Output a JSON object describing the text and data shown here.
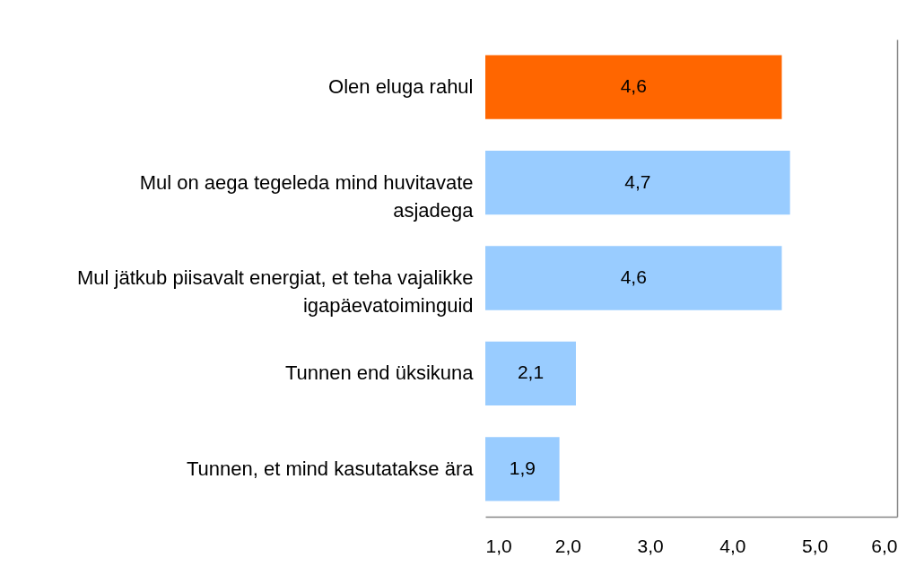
{
  "chart_data": {
    "type": "bar",
    "orientation": "horizontal",
    "categories": [
      "Olen eluga rahul",
      "Mul on aega tegeleda mind huvitavate asjadega",
      "Mul jätkub piisavalt energiat, et teha vajalikke igapäevatoiminguid",
      "Tunnen end üksikuna",
      "Tunnen, et mind kasutatakse ära"
    ],
    "values": [
      4.6,
      4.7,
      4.6,
      2.1,
      1.9
    ],
    "colors": [
      "#ff6600",
      "#99ccff",
      "#99ccff",
      "#99ccff",
      "#99ccff"
    ],
    "value_labels": [
      "4,6",
      "4,7",
      "4,6",
      "2,1",
      "1,9"
    ],
    "xlim": [
      1,
      6
    ],
    "xticks": [
      {
        "value": 1,
        "label": "1,0"
      },
      {
        "value": 2,
        "label": "2,0"
      },
      {
        "value": 3,
        "label": "3,0"
      },
      {
        "value": 4,
        "label": "4,0"
      },
      {
        "value": 5,
        "label": "5,0"
      },
      {
        "value": 6,
        "label": "6,0"
      }
    ]
  }
}
